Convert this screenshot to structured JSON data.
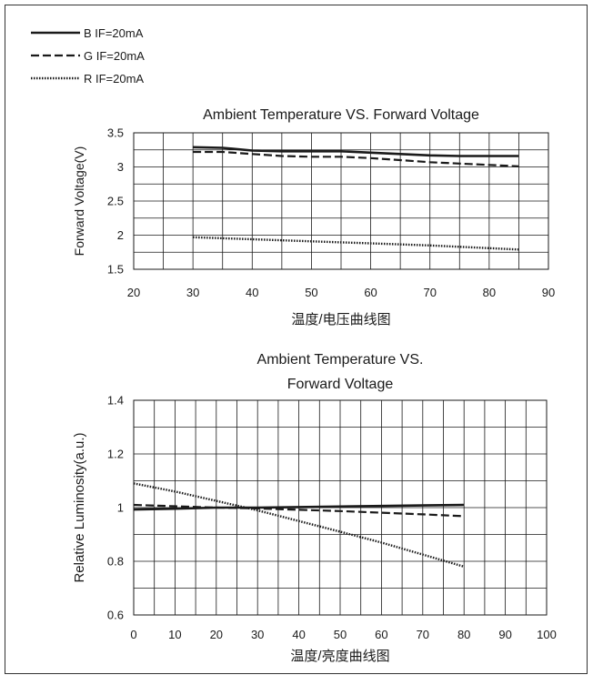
{
  "legend": [
    {
      "key": "B",
      "label": "B  IF=20mA",
      "dash": "solid"
    },
    {
      "key": "G",
      "label": "G  IF=20mA",
      "dash": "dashed"
    },
    {
      "key": "R",
      "label": "R  IF=20mA",
      "dash": "dotted"
    }
  ],
  "chart_data": [
    {
      "type": "line",
      "title": "Ambient Temperature VS. Forward Voltage",
      "xlabel": "温度/电压曲线图",
      "ylabel": "Forward Voltage(V)",
      "xlim": [
        20,
        90
      ],
      "ylim": [
        1.5,
        3.5
      ],
      "xticks": [
        20,
        30,
        40,
        50,
        60,
        70,
        80,
        90
      ],
      "yticks": [
        1.5,
        2,
        2.5,
        3,
        3.5
      ],
      "ytick_labels": [
        "1.5",
        "2",
        "2.5",
        "3",
        "3.5"
      ],
      "xgrid_step": 5,
      "ygrid_step": 0.25,
      "grid": true,
      "series": [
        {
          "name": "B",
          "x": [
            30,
            35,
            40,
            45,
            50,
            55,
            60,
            65,
            70,
            75,
            80,
            85
          ],
          "values": [
            3.29,
            3.28,
            3.24,
            3.23,
            3.23,
            3.23,
            3.21,
            3.19,
            3.17,
            3.16,
            3.16,
            3.16
          ]
        },
        {
          "name": "G",
          "x": [
            30,
            35,
            40,
            45,
            50,
            55,
            60,
            65,
            70,
            75,
            80,
            85
          ],
          "values": [
            3.22,
            3.22,
            3.19,
            3.16,
            3.15,
            3.15,
            3.13,
            3.1,
            3.07,
            3.05,
            3.03,
            3.01
          ]
        },
        {
          "name": "R",
          "x": [
            30,
            40,
            50,
            60,
            70,
            80,
            85
          ],
          "values": [
            1.97,
            1.94,
            1.91,
            1.88,
            1.85,
            1.81,
            1.79
          ]
        }
      ]
    },
    {
      "type": "line",
      "title": "Ambient Temperature VS.",
      "subtitle": "Forward Voltage",
      "xlabel": "温度/亮度曲线图",
      "ylabel": "Relative Luminosity(a.u.)",
      "xlim": [
        0,
        100
      ],
      "ylim": [
        0.6,
        1.4
      ],
      "xticks": [
        0,
        10,
        20,
        30,
        40,
        50,
        60,
        70,
        80,
        90,
        100
      ],
      "yticks": [
        0.6,
        0.8,
        1,
        1.2,
        1.4
      ],
      "ytick_labels": [
        "0.6",
        "0.8",
        "1",
        "1.2",
        "1.4"
      ],
      "xgrid_step": 5,
      "ygrid_step": 0.1,
      "grid": true,
      "series": [
        {
          "name": "B",
          "x": [
            0,
            10,
            20,
            30,
            40,
            50,
            60,
            70,
            80
          ],
          "values": [
            0.993,
            0.996,
            1.0,
            1.0,
            1.002,
            1.004,
            1.006,
            1.008,
            1.01
          ]
        },
        {
          "name": "G",
          "x": [
            0,
            10,
            20,
            30,
            40,
            50,
            60,
            70,
            80
          ],
          "values": [
            1.01,
            1.005,
            1.0,
            0.997,
            0.992,
            0.987,
            0.981,
            0.975,
            0.968
          ]
        },
        {
          "name": "R",
          "x": [
            0,
            10,
            20,
            30,
            40,
            50,
            60,
            70,
            80
          ],
          "values": [
            1.09,
            1.06,
            1.025,
            0.99,
            0.95,
            0.91,
            0.87,
            0.825,
            0.78
          ]
        }
      ]
    }
  ]
}
